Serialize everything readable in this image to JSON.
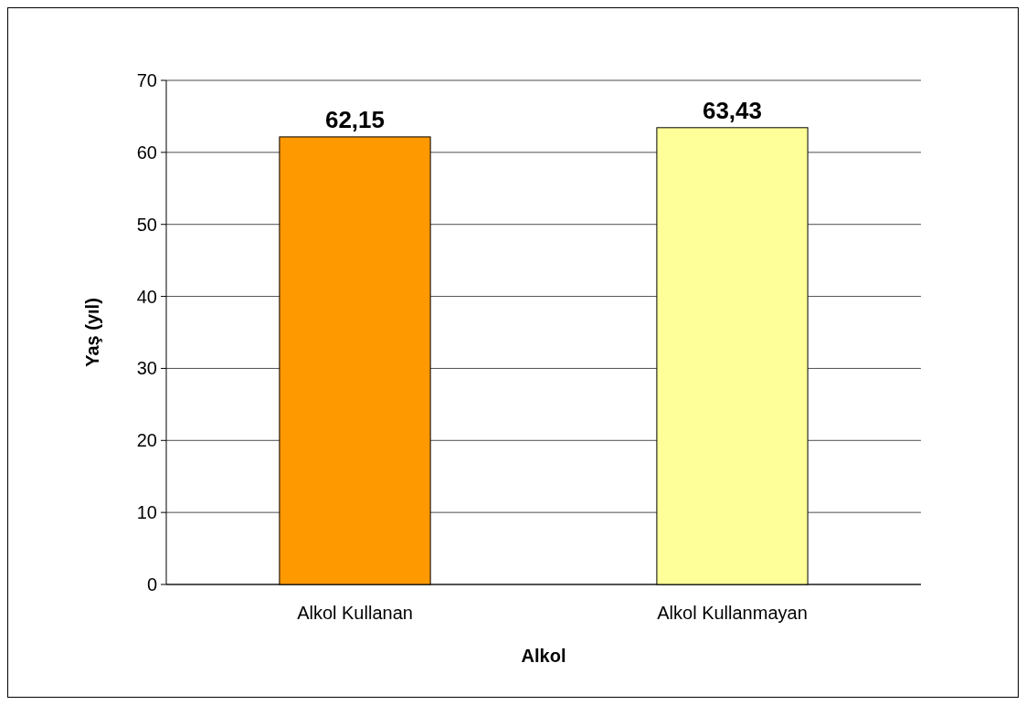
{
  "chart_data": {
    "type": "bar",
    "xlabel": "Alkol",
    "ylabel": "Yaş (yıl)",
    "categories": [
      "Alkol Kullanan",
      "Alkol Kullanmayan"
    ],
    "values": [
      62.15,
      63.43
    ],
    "value_labels": [
      "62,15",
      "63,43"
    ],
    "colors": [
      "#ff9900",
      "#ffff99"
    ],
    "ylim": [
      0,
      70
    ],
    "yticks": [
      0,
      10,
      20,
      30,
      40,
      50,
      60,
      70
    ],
    "grid": "y"
  }
}
